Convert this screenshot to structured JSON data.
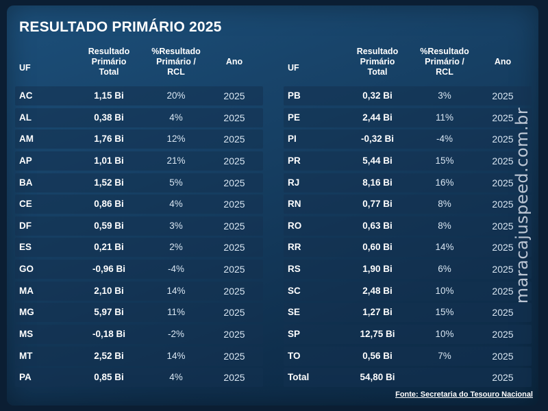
{
  "title": "RESULTADO PRIMÁRIO 2025",
  "headers": {
    "uf": "UF",
    "total": "Resultado\nPrimário\nTotal",
    "pct": "%Resultado\nPrimário /\nRCL",
    "ano": "Ano"
  },
  "left_rows": [
    {
      "uf": "AC",
      "total": "1,15 Bi",
      "pct": "20%",
      "ano": "2025"
    },
    {
      "uf": "AL",
      "total": "0,38 Bi",
      "pct": "4%",
      "ano": "2025"
    },
    {
      "uf": "AM",
      "total": "1,76 Bi",
      "pct": "12%",
      "ano": "2025"
    },
    {
      "uf": "AP",
      "total": "1,01 Bi",
      "pct": "21%",
      "ano": "2025"
    },
    {
      "uf": "BA",
      "total": "1,52 Bi",
      "pct": "5%",
      "ano": "2025"
    },
    {
      "uf": "CE",
      "total": "0,86 Bi",
      "pct": "4%",
      "ano": "2025"
    },
    {
      "uf": "DF",
      "total": "0,59 Bi",
      "pct": "3%",
      "ano": "2025"
    },
    {
      "uf": "ES",
      "total": "0,21 Bi",
      "pct": "2%",
      "ano": "2025"
    },
    {
      "uf": "GO",
      "total": "-0,96 Bi",
      "pct": "-4%",
      "ano": "2025"
    },
    {
      "uf": "MA",
      "total": "2,10 Bi",
      "pct": "14%",
      "ano": "2025"
    },
    {
      "uf": "MG",
      "total": "5,97 Bi",
      "pct": "11%",
      "ano": "2025"
    },
    {
      "uf": "MS",
      "total": "-0,18 Bi",
      "pct": "-2%",
      "ano": "2025"
    },
    {
      "uf": "MT",
      "total": "2,52 Bi",
      "pct": "14%",
      "ano": "2025"
    },
    {
      "uf": "PA",
      "total": "0,85 Bi",
      "pct": "4%",
      "ano": "2025"
    }
  ],
  "right_rows": [
    {
      "uf": "PB",
      "total": "0,32 Bi",
      "pct": "3%",
      "ano": "2025"
    },
    {
      "uf": "PE",
      "total": "2,44 Bi",
      "pct": "11%",
      "ano": "2025"
    },
    {
      "uf": "PI",
      "total": "-0,32 Bi",
      "pct": "-4%",
      "ano": "2025"
    },
    {
      "uf": "PR",
      "total": "5,44 Bi",
      "pct": "15%",
      "ano": "2025"
    },
    {
      "uf": "RJ",
      "total": "8,16 Bi",
      "pct": "16%",
      "ano": "2025"
    },
    {
      "uf": "RN",
      "total": "0,77 Bi",
      "pct": "8%",
      "ano": "2025"
    },
    {
      "uf": "RO",
      "total": "0,63 Bi",
      "pct": "8%",
      "ano": "2025"
    },
    {
      "uf": "RR",
      "total": "0,60 Bi",
      "pct": "14%",
      "ano": "2025"
    },
    {
      "uf": "RS",
      "total": "1,90 Bi",
      "pct": "6%",
      "ano": "2025"
    },
    {
      "uf": "SC",
      "total": "2,48 Bi",
      "pct": "10%",
      "ano": "2025"
    },
    {
      "uf": "SE",
      "total": "1,27 Bi",
      "pct": "15%",
      "ano": "2025"
    },
    {
      "uf": "SP",
      "total": "12,75 Bi",
      "pct": "10%",
      "ano": "2025"
    },
    {
      "uf": "TO",
      "total": "0,56 Bi",
      "pct": "7%",
      "ano": "2025"
    },
    {
      "uf": "Total",
      "total": "54,80 Bi",
      "pct": "",
      "ano": "2025"
    }
  ],
  "source": "Fonte: Secretaria do Tesouro Nacional",
  "watermark": "maracajuspeed.com.br",
  "colors": {
    "background": "#163f63",
    "row": "#14324f",
    "text": "#ffffff"
  }
}
